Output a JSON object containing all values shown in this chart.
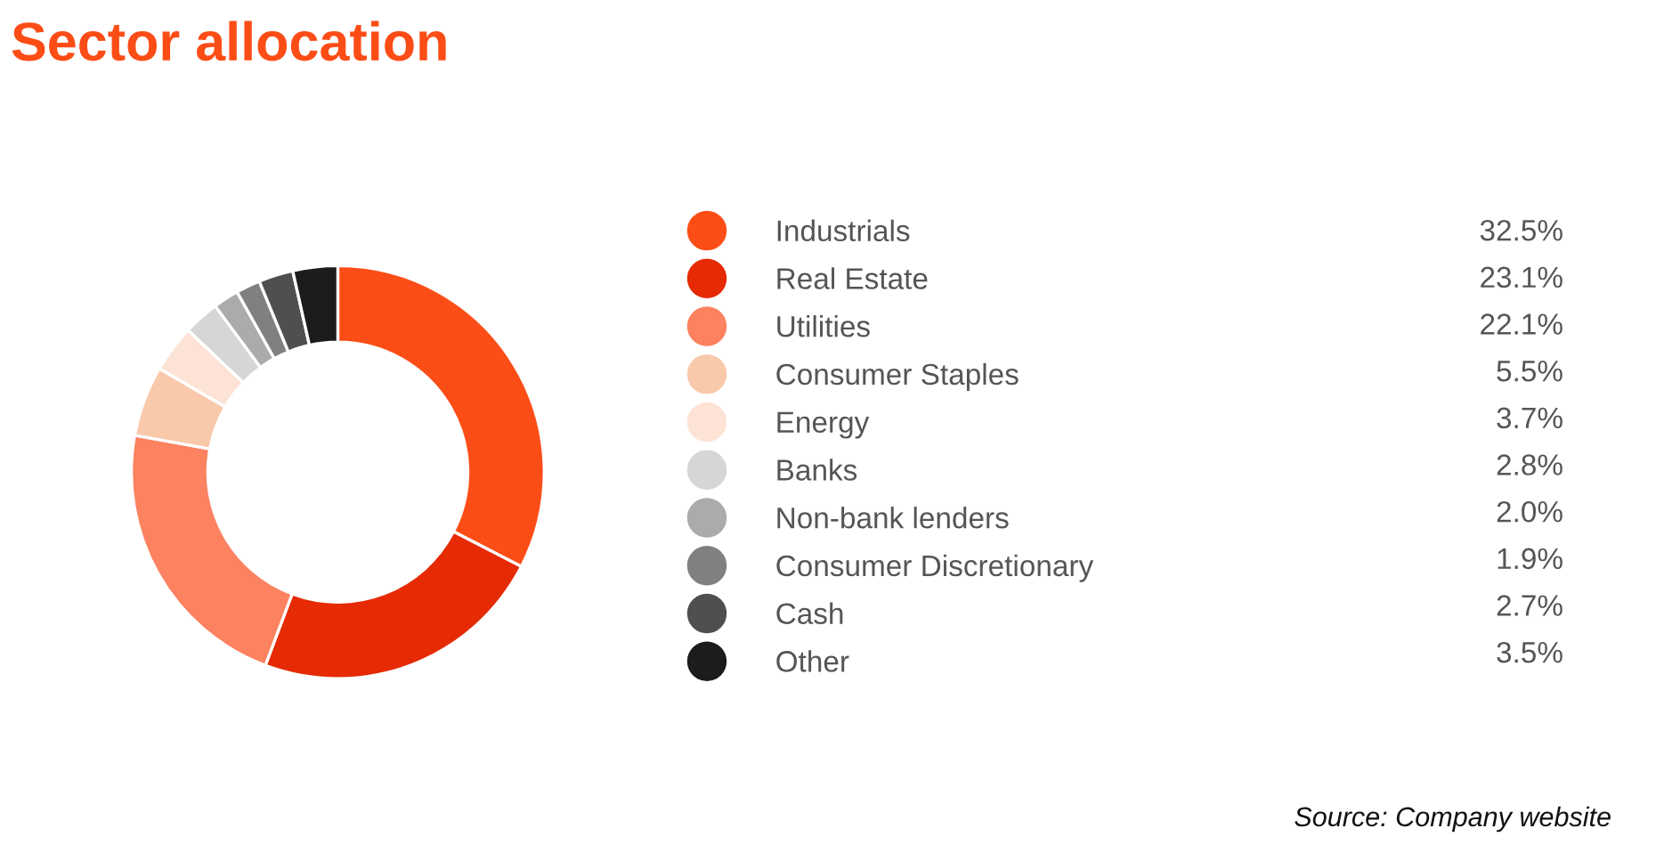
{
  "chart_data": {
    "type": "donut",
    "title": "Sector allocation",
    "categories": [
      "Industrials",
      "Real Estate",
      "Utilities",
      "Consumer Staples",
      "Energy",
      "Banks",
      "Non-bank lenders",
      "Consumer Discretionary",
      "Cash",
      "Other"
    ],
    "values": [
      32.5,
      23.1,
      22.1,
      5.5,
      3.7,
      2.8,
      2.0,
      1.9,
      2.7,
      3.5
    ],
    "value_labels": [
      "32.5%",
      "23.1%",
      "22.1%",
      "5.5%",
      "3.7%",
      "2.8%",
      "2.0%",
      "1.9%",
      "2.7%",
      "3.5%"
    ],
    "colors": [
      "#fc4d17",
      "#e52a04",
      "#fc8260",
      "#f9c9ab",
      "#fde3d6",
      "#d6d6d6",
      "#ababab",
      "#808080",
      "#4f4f4f",
      "#1c1c1c"
    ],
    "legend": "right",
    "annotations": [
      "Source: Company website"
    ]
  }
}
